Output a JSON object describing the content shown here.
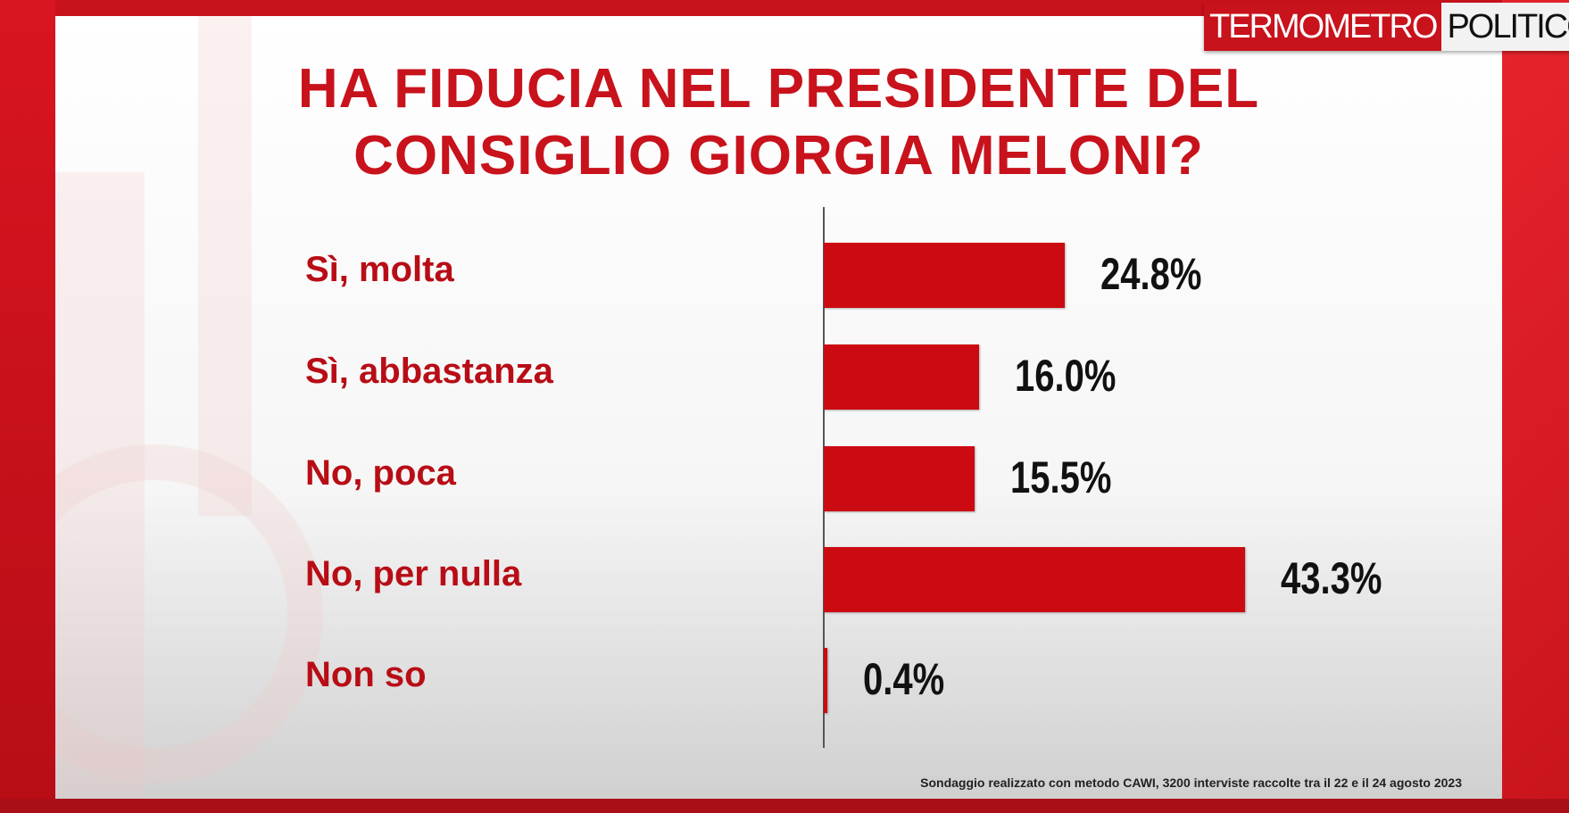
{
  "logo": {
    "part1": "TERMOMETRO",
    "part2": "POLITICO"
  },
  "chart_data": {
    "type": "bar",
    "orientation": "horizontal",
    "title": "HA FIDUCIA NEL PRESIDENTE DEL CONSIGLIO GIORGIA MELONI?",
    "title_lines": [
      "HA FIDUCIA NEL PRESIDENTE DEL",
      "CONSIGLIO GIORGIA MELONI?"
    ],
    "categories": [
      "Sì, molta",
      "Sì, abbastanza",
      "No, poca",
      "No, per nulla",
      "Non so"
    ],
    "values": [
      24.8,
      16.0,
      15.5,
      43.3,
      0.4
    ],
    "value_labels": [
      "24.8%",
      "16.0%",
      "15.5%",
      "43.3%",
      "0.4%"
    ],
    "unit": "%",
    "xlim": [
      0,
      50
    ],
    "bar_color": "#cc0a12"
  },
  "footnote": "Sondaggio realizzato con metodo CAWI, 3200 interviste raccolte tra il 22 e il 24 agosto 2023"
}
